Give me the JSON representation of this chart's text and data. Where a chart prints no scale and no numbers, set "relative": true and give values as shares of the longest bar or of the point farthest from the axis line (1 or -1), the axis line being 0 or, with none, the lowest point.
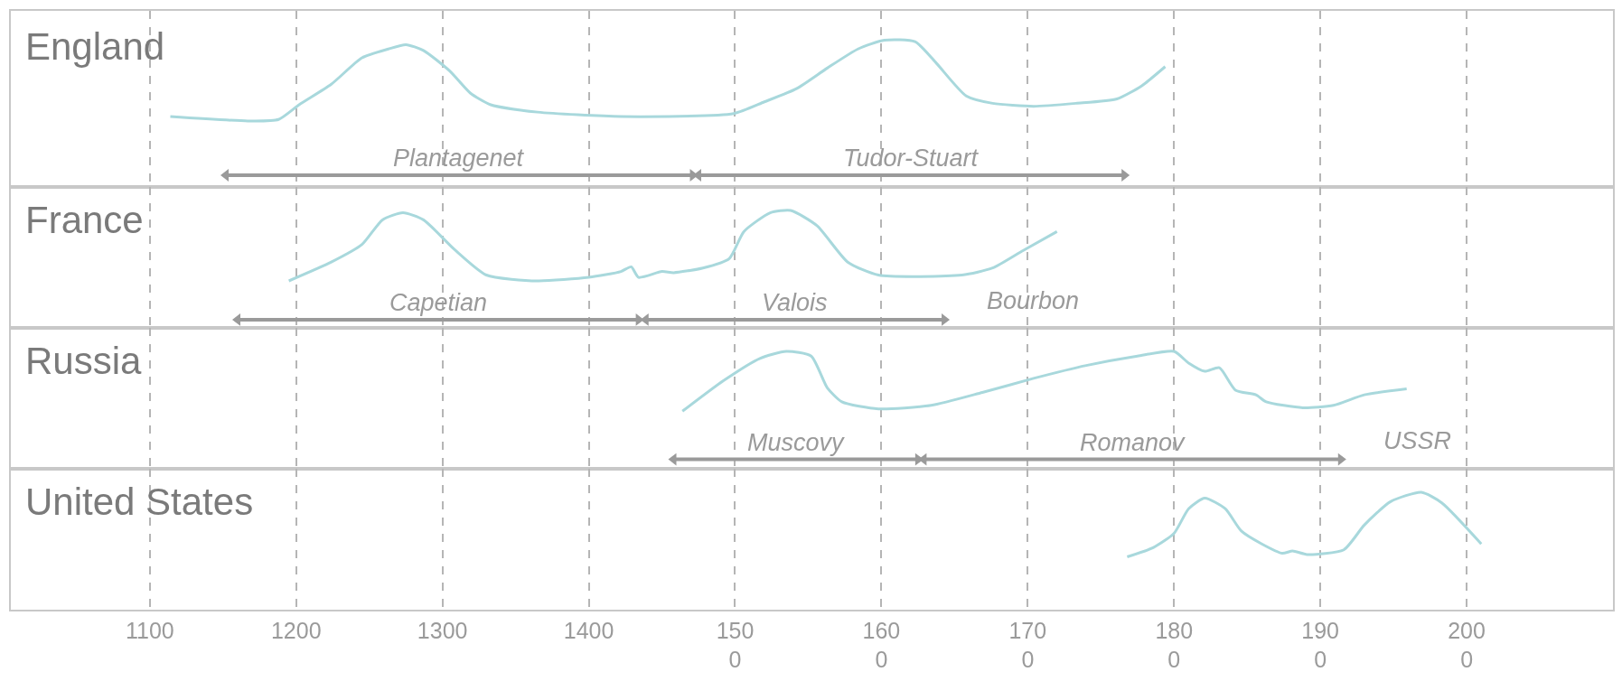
{
  "chart_data": [
    {
      "type": "line",
      "title": "England",
      "relative": true,
      "legend": false,
      "grid": "x",
      "tick_labels": false,
      "xlim": [
        1005,
        2100
      ],
      "xticks": [
        {
          "value": 1100,
          "label": null
        },
        {
          "value": 1200,
          "label": null
        },
        {
          "value": 1300,
          "label": null
        },
        {
          "value": 1400,
          "label": null
        },
        {
          "value": 1500,
          "label": null
        },
        {
          "value": 1600,
          "label": null
        },
        {
          "value": 1700,
          "label": null
        },
        {
          "value": 1800,
          "label": null
        },
        {
          "value": 1900,
          "label": null
        },
        {
          "value": 2000,
          "label": null
        }
      ],
      "series": [
        {
          "color": "#a8d8dc",
          "x": [
            1114,
            1167,
            1188,
            1202,
            1224,
            1245,
            1263,
            1275,
            1287,
            1305,
            1319,
            1333,
            1365,
            1422,
            1499,
            1520,
            1542,
            1563,
            1584,
            1602,
            1623,
            1637,
            1658,
            1676,
            1704,
            1733,
            1761,
            1778,
            1794
          ],
          "values": [
            0.48,
            0.45,
            0.46,
            0.56,
            0.7,
            0.88,
            0.94,
            0.97,
            0.93,
            0.79,
            0.64,
            0.56,
            0.51,
            0.48,
            0.5,
            0.58,
            0.67,
            0.81,
            0.94,
            1,
            0.99,
            0.85,
            0.62,
            0.57,
            0.55,
            0.57,
            0.6,
            0.69,
            0.82
          ]
        },
        {
          "name": "Plantagenet",
          "color": "#9a9a9a",
          "marker": "triangle",
          "x": [
            1152,
            1471
          ],
          "values": [
            0.08,
            0.08
          ]
        },
        {
          "name": "Tudor-Stuart",
          "color": "#9a9a9a",
          "marker": "triangle",
          "x": [
            1475,
            1766
          ],
          "values": [
            0.08,
            0.08
          ]
        }
      ]
    },
    {
      "type": "line",
      "title": "France",
      "relative": true,
      "legend": false,
      "grid": "x",
      "tick_labels": false,
      "xlim": [
        1005,
        2100
      ],
      "xticks": [
        {
          "value": 1100,
          "label": null
        },
        {
          "value": 1200,
          "label": null
        },
        {
          "value": 1300,
          "label": null
        },
        {
          "value": 1400,
          "label": null
        },
        {
          "value": 1500,
          "label": null
        },
        {
          "value": 1600,
          "label": null
        },
        {
          "value": 1700,
          "label": null
        },
        {
          "value": 1800,
          "label": null
        },
        {
          "value": 1900,
          "label": null
        },
        {
          "value": 2000,
          "label": null
        }
      ],
      "annotations": [
        "Bourbon"
      ],
      "series": [
        {
          "color": "#a8d8dc",
          "x": [
            1195,
            1224,
            1245,
            1259,
            1273,
            1287,
            1308,
            1330,
            1365,
            1400,
            1422,
            1429,
            1434,
            1450,
            1458,
            1478,
            1496,
            1506,
            1524,
            1538,
            1556,
            1577,
            1598,
            1655,
            1676,
            1697,
            1720
          ],
          "values": [
            0.4,
            0.56,
            0.71,
            0.92,
            0.98,
            0.92,
            0.67,
            0.45,
            0.4,
            0.43,
            0.48,
            0.52,
            0.43,
            0.48,
            0.47,
            0.51,
            0.59,
            0.82,
            0.98,
            1,
            0.87,
            0.56,
            0.45,
            0.45,
            0.51,
            0.66,
            0.82
          ]
        },
        {
          "name": "Capetian",
          "color": "#9a9a9a",
          "marker": "triangle",
          "x": [
            1160,
            1434
          ],
          "values": [
            0.07,
            0.07
          ]
        },
        {
          "name": "Valois",
          "color": "#9a9a9a",
          "marker": "triangle",
          "x": [
            1439,
            1643
          ],
          "values": [
            0.07,
            0.07
          ]
        }
      ]
    },
    {
      "type": "line",
      "title": "Russia",
      "relative": true,
      "legend": false,
      "grid": "x",
      "tick_labels": false,
      "xlim": [
        1005,
        2100
      ],
      "xticks": [
        {
          "value": 1100,
          "label": null
        },
        {
          "value": 1200,
          "label": null
        },
        {
          "value": 1300,
          "label": null
        },
        {
          "value": 1400,
          "label": null
        },
        {
          "value": 1500,
          "label": null
        },
        {
          "value": 1600,
          "label": null
        },
        {
          "value": 1700,
          "label": null
        },
        {
          "value": 1800,
          "label": null
        },
        {
          "value": 1900,
          "label": null
        },
        {
          "value": 2000,
          "label": null
        }
      ],
      "annotations": [
        "USSR"
      ],
      "series": [
        {
          "color": "#a8d8dc",
          "x": [
            1464,
            1492,
            1517,
            1535,
            1552,
            1563,
            1573,
            1598,
            1634,
            1669,
            1704,
            1740,
            1775,
            1800,
            1810,
            1821,
            1831,
            1842,
            1856,
            1863,
            1888,
            1909,
            1930,
            1959
          ],
          "values": [
            0.49,
            0.75,
            0.94,
            1,
            0.96,
            0.69,
            0.57,
            0.51,
            0.54,
            0.65,
            0.77,
            0.88,
            0.96,
            1,
            0.9,
            0.83,
            0.86,
            0.67,
            0.63,
            0.57,
            0.52,
            0.54,
            0.63,
            0.68
          ]
        },
        {
          "name": "Muscovy",
          "color": "#9a9a9a",
          "marker": "triangle",
          "x": [
            1458,
            1625
          ],
          "values": [
            0.08,
            0.08
          ]
        },
        {
          "name": "Romanov",
          "color": "#9a9a9a",
          "marker": "triangle",
          "x": [
            1629,
            1914
          ],
          "values": [
            0.08,
            0.08
          ]
        }
      ]
    },
    {
      "type": "line",
      "title": "United States",
      "relative": true,
      "legend": false,
      "grid": "x",
      "tick_labels": "x",
      "xlim": [
        1005,
        2100
      ],
      "xticks": [
        1100,
        1200,
        1300,
        1400,
        {
          "value": 1500,
          "label": "150\n0"
        },
        {
          "value": 1600,
          "label": "160\n0"
        },
        {
          "value": 1700,
          "label": "170\n0"
        },
        {
          "value": 1800,
          "label": "180\n0"
        },
        {
          "value": 1900,
          "label": "190\n0"
        },
        {
          "value": 2000,
          "label": "200\n0"
        }
      ],
      "series": [
        {
          "color": "#a8d8dc",
          "x": [
            1768,
            1786,
            1800,
            1810,
            1821,
            1835,
            1846,
            1860,
            1874,
            1881,
            1891,
            1916,
            1930,
            1948,
            1969,
            1983,
            2010
          ],
          "values": [
            0.45,
            0.53,
            0.65,
            0.86,
            0.95,
            0.86,
            0.67,
            0.56,
            0.48,
            0.5,
            0.47,
            0.51,
            0.72,
            0.92,
            1,
            0.91,
            0.56
          ]
        }
      ]
    }
  ]
}
